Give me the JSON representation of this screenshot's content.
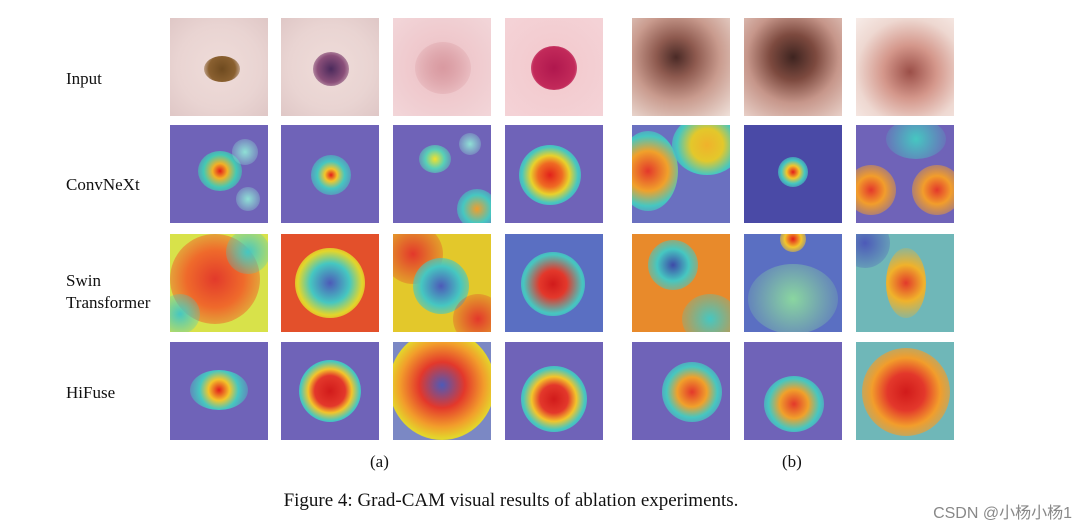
{
  "rows": [
    {
      "label": "Input"
    },
    {
      "label": "ConvNeXt"
    },
    {
      "label": "Swin\nTransformer"
    },
    {
      "label": "HiFuse"
    }
  ],
  "subcaptions": {
    "a": "(a)",
    "b": "(b)"
  },
  "caption": "Figure 4: Grad-CAM visual results of ablation experiments.",
  "watermark": "CSDN @小杨小杨1",
  "colors": {
    "cam_low": "#5a56b0",
    "cam_mid": "#46c7c1",
    "cam_high": "#e3382b"
  }
}
